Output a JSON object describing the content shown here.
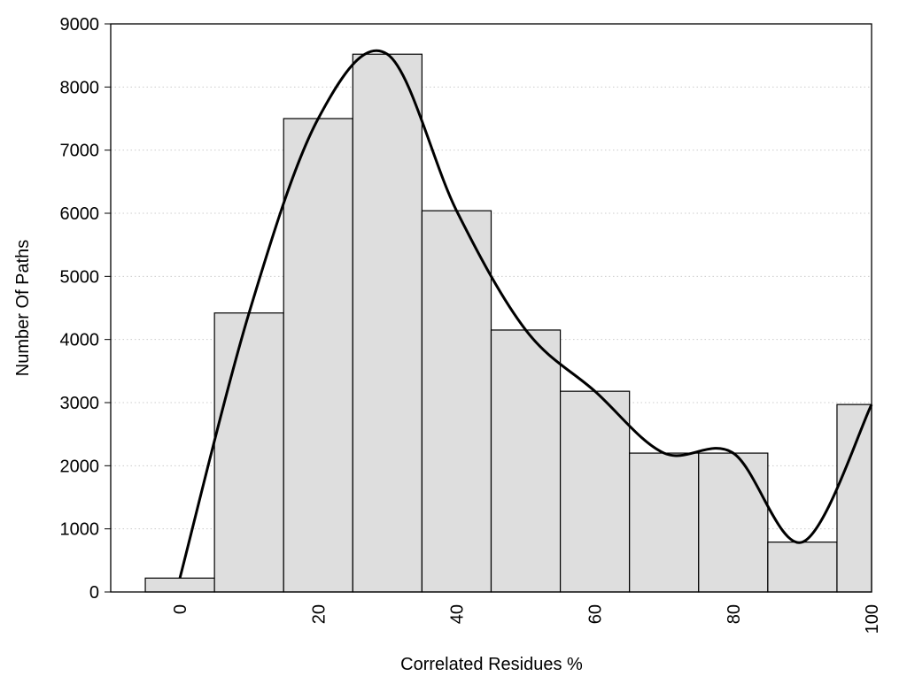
{
  "chart_data": {
    "type": "bar",
    "subtype": "histogram-with-smooth-curve",
    "title": "",
    "xlabel": "Correlated Residues %",
    "ylabel": "Number Of Paths",
    "x": [
      0,
      10,
      20,
      30,
      40,
      50,
      60,
      70,
      80,
      90,
      100
    ],
    "bin_width": 10,
    "values": [
      220,
      4420,
      7500,
      8520,
      6040,
      4150,
      3180,
      2200,
      2200,
      790,
      2970
    ],
    "xlim": [
      -10,
      100
    ],
    "ylim": [
      0,
      9000
    ],
    "xticks": [
      "0",
      "20",
      "40",
      "60",
      "80",
      "100"
    ],
    "xtick_values": [
      0,
      20,
      40,
      60,
      80,
      100
    ],
    "yticks": [
      "0",
      "1000",
      "2000",
      "3000",
      "4000",
      "5000",
      "6000",
      "7000",
      "8000",
      "9000"
    ],
    "ytick_values": [
      0,
      1000,
      2000,
      3000,
      4000,
      5000,
      6000,
      7000,
      8000,
      9000
    ],
    "grid": "horizontal dotted",
    "curve": "smooth line through bar tops",
    "colors": {
      "bar_fill": "#dedede",
      "bar_edge": "#000000",
      "curve": "#000000",
      "grid": "#cccccc"
    }
  }
}
